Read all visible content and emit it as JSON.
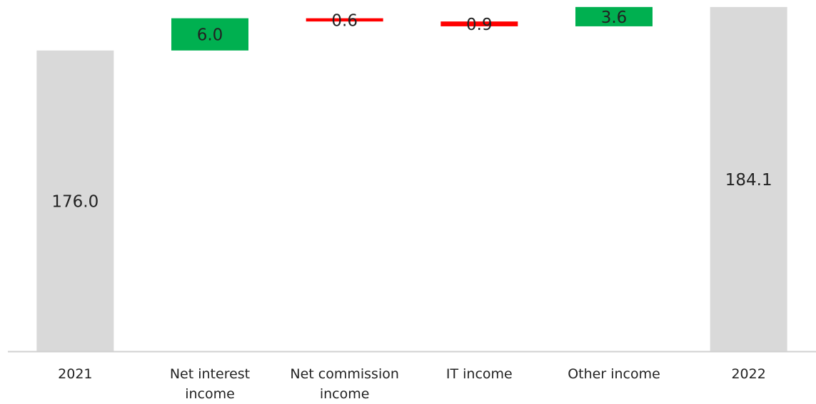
{
  "chart_data": {
    "type": "waterfall",
    "categories": [
      "2021",
      "Net interest income",
      "Net commission income",
      "IT income",
      "Other income",
      "2022"
    ],
    "values": [
      176.0,
      6.0,
      -0.6,
      -0.9,
      3.6,
      184.1
    ],
    "value_labels": [
      "176.0",
      "6.0",
      "0.6",
      "0.9",
      "3.6",
      "184.1"
    ],
    "colors": {
      "total": "#d9d9d9",
      "increase": "#00b050",
      "decrease": "#ff0000"
    },
    "ylim": [
      120,
      185.4
    ]
  }
}
